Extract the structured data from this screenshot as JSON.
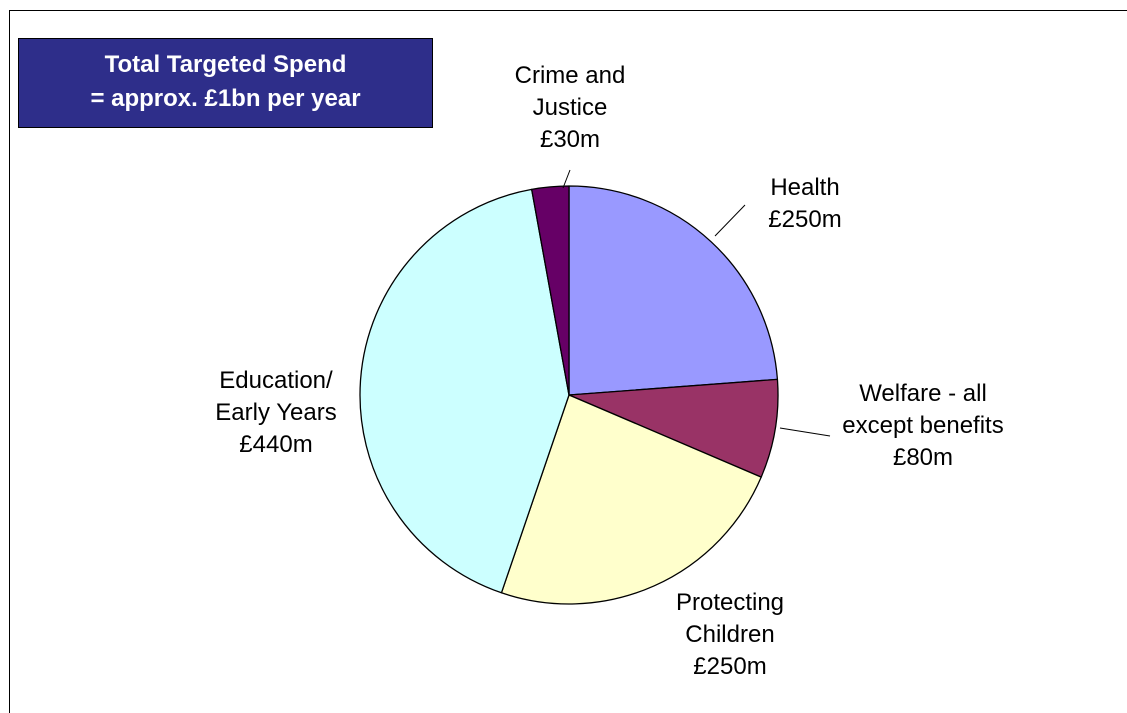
{
  "chart_data": {
    "type": "pie",
    "title_lines": [
      "Total Targeted Spend",
      "= approx. £1bn per year"
    ],
    "slices": [
      {
        "category": "Health",
        "value": 250,
        "value_label": "£250m",
        "label_lines": [
          "Health",
          "£250m"
        ],
        "color": "#9999ff"
      },
      {
        "category": "Welfare - all except benefits",
        "value": 80,
        "value_label": "£80m",
        "label_lines": [
          "Welfare - all",
          "except benefits",
          "£80m"
        ],
        "color": "#993366"
      },
      {
        "category": "Protecting Children",
        "value": 250,
        "value_label": "£250m",
        "label_lines": [
          "Protecting",
          "Children",
          "£250m"
        ],
        "color": "#ffffcc"
      },
      {
        "category": "Education/ Early Years",
        "value": 440,
        "value_label": "£440m",
        "label_lines": [
          "Education/",
          "Early Years",
          "£440m"
        ],
        "color": "#ccffff"
      },
      {
        "category": "Crime and Justice",
        "value": 30,
        "value_label": "£30m",
        "label_lines": [
          "Crime and",
          "Justice",
          "£30m"
        ],
        "color": "#660066"
      }
    ],
    "start_angle": "12 o'clock",
    "direction": "clockwise",
    "legend": "none",
    "label_placement": "outside with leader lines"
  }
}
